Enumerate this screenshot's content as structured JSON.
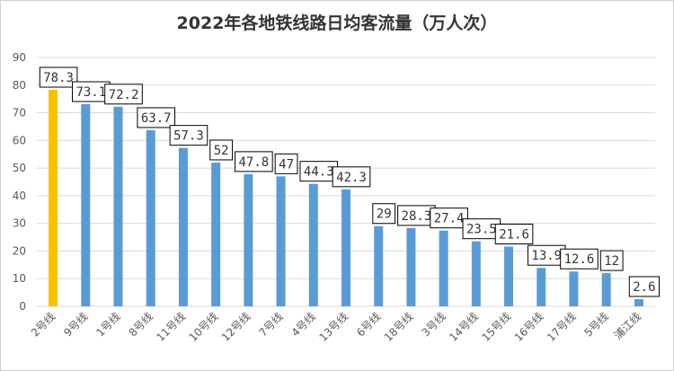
{
  "chart_data": {
    "type": "bar",
    "title": "2022年各地铁线路日均客流量（万人次）",
    "xlabel": "",
    "ylabel": "",
    "ylim": [
      0,
      90
    ],
    "yticks": [
      0,
      10,
      20,
      30,
      40,
      50,
      60,
      70,
      80,
      90
    ],
    "grid": true,
    "legend": "none",
    "categories": [
      "2号线",
      "9号线",
      "1号线",
      "8号线",
      "11号线",
      "10号线",
      "12号线",
      "7号线",
      "4号线",
      "13号线",
      "6号线",
      "18号线",
      "3号线",
      "14号线",
      "15号线",
      "16号线",
      "17号线",
      "5号线",
      "浦江线"
    ],
    "values": [
      78.3,
      73.1,
      72.2,
      63.7,
      57.3,
      52,
      47.8,
      47,
      44.3,
      42.3,
      29,
      28.3,
      27.4,
      23.5,
      21.6,
      13.9,
      12.6,
      12,
      2.6
    ],
    "data_labels": [
      "78.3",
      "73.1",
      "72.2",
      "63.7",
      "57.3",
      "52",
      "47.8",
      "47",
      "44.3",
      "42.3",
      "29",
      "28.3",
      "27.4",
      "23.5",
      "21.6",
      "13.9",
      "12.6",
      "12",
      "2.6"
    ],
    "colors": {
      "highlight": "#FFC000",
      "default": "#5B9BD5",
      "grid": "#D9D9D9"
    },
    "highlight_index": 0
  }
}
